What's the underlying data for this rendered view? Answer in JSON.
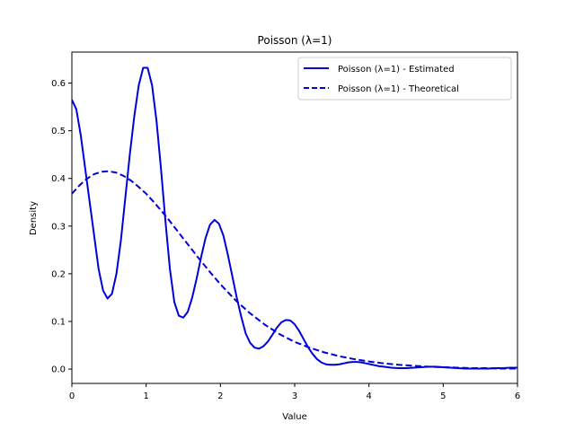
{
  "chart_data": {
    "type": "line",
    "title": "Poisson (λ=1)",
    "xlabel": "Value",
    "ylabel": "Density",
    "xlim": [
      0,
      6
    ],
    "ylim": [
      -0.03,
      0.665
    ],
    "xticks": [
      0,
      1,
      2,
      3,
      4,
      5,
      6
    ],
    "yticks": [
      0.0,
      0.1,
      0.2,
      0.3,
      0.4,
      0.5,
      0.6
    ],
    "grid": false,
    "legend_position": "top-right",
    "series": [
      {
        "name": "Poisson (λ=1) - Estimated",
        "style": "solid",
        "color": "#0000dd",
        "x": [
          0.0,
          0.06,
          0.12,
          0.18,
          0.24,
          0.3,
          0.36,
          0.42,
          0.48,
          0.54,
          0.6,
          0.66,
          0.72,
          0.78,
          0.84,
          0.9,
          0.96,
          1.02,
          1.08,
          1.14,
          1.2,
          1.26,
          1.32,
          1.38,
          1.44,
          1.5,
          1.56,
          1.62,
          1.68,
          1.74,
          1.8,
          1.86,
          1.92,
          1.98,
          2.04,
          2.1,
          2.16,
          2.22,
          2.28,
          2.34,
          2.4,
          2.46,
          2.52,
          2.58,
          2.64,
          2.7,
          2.76,
          2.82,
          2.88,
          2.94,
          3.0,
          3.06,
          3.12,
          3.18,
          3.24,
          3.3,
          3.36,
          3.42,
          3.48,
          3.54,
          3.6,
          3.66,
          3.72,
          3.78,
          3.84,
          3.9,
          3.96,
          4.02,
          4.08,
          4.14,
          4.2,
          4.3,
          4.4,
          4.5,
          4.6,
          4.7,
          4.8,
          4.9,
          5.0,
          5.1,
          5.2,
          5.3,
          5.4,
          5.5,
          5.6,
          5.7,
          5.8,
          5.9,
          6.0
        ],
        "y": [
          0.565,
          0.545,
          0.49,
          0.42,
          0.35,
          0.28,
          0.21,
          0.165,
          0.148,
          0.158,
          0.2,
          0.27,
          0.36,
          0.45,
          0.53,
          0.595,
          0.632,
          0.632,
          0.595,
          0.52,
          0.42,
          0.31,
          0.21,
          0.14,
          0.112,
          0.108,
          0.12,
          0.15,
          0.19,
          0.235,
          0.275,
          0.303,
          0.313,
          0.305,
          0.28,
          0.24,
          0.195,
          0.15,
          0.11,
          0.075,
          0.055,
          0.045,
          0.043,
          0.048,
          0.058,
          0.072,
          0.087,
          0.098,
          0.103,
          0.102,
          0.094,
          0.08,
          0.063,
          0.046,
          0.032,
          0.021,
          0.014,
          0.01,
          0.009,
          0.009,
          0.01,
          0.012,
          0.014,
          0.015,
          0.015,
          0.014,
          0.012,
          0.01,
          0.008,
          0.006,
          0.005,
          0.003,
          0.002,
          0.002,
          0.003,
          0.004,
          0.005,
          0.005,
          0.004,
          0.003,
          0.002,
          0.001,
          0.001,
          0.001,
          0.001,
          0.002,
          0.002,
          0.003,
          0.003
        ]
      },
      {
        "name": "Poisson (λ=1) - Theoretical",
        "style": "dashed",
        "color": "#0000dd",
        "x": [
          0.0,
          0.1,
          0.2,
          0.3,
          0.4,
          0.5,
          0.6,
          0.7,
          0.8,
          0.9,
          1.0,
          1.1,
          1.2,
          1.3,
          1.4,
          1.5,
          1.6,
          1.7,
          1.8,
          1.9,
          2.0,
          2.2,
          2.4,
          2.6,
          2.8,
          3.0,
          3.2,
          3.4,
          3.6,
          3.8,
          4.0,
          4.2,
          4.4,
          4.6,
          4.8,
          5.0,
          5.2,
          5.4,
          5.6,
          5.8,
          6.0
        ],
        "y": [
          0.368,
          0.385,
          0.399,
          0.409,
          0.414,
          0.415,
          0.412,
          0.405,
          0.395,
          0.382,
          0.368,
          0.351,
          0.333,
          0.314,
          0.294,
          0.274,
          0.254,
          0.234,
          0.215,
          0.196,
          0.178,
          0.145,
          0.117,
          0.093,
          0.073,
          0.057,
          0.045,
          0.035,
          0.027,
          0.021,
          0.016,
          0.012,
          0.009,
          0.007,
          0.005,
          0.004,
          0.003,
          0.002,
          0.002,
          0.001,
          0.001
        ]
      }
    ]
  }
}
